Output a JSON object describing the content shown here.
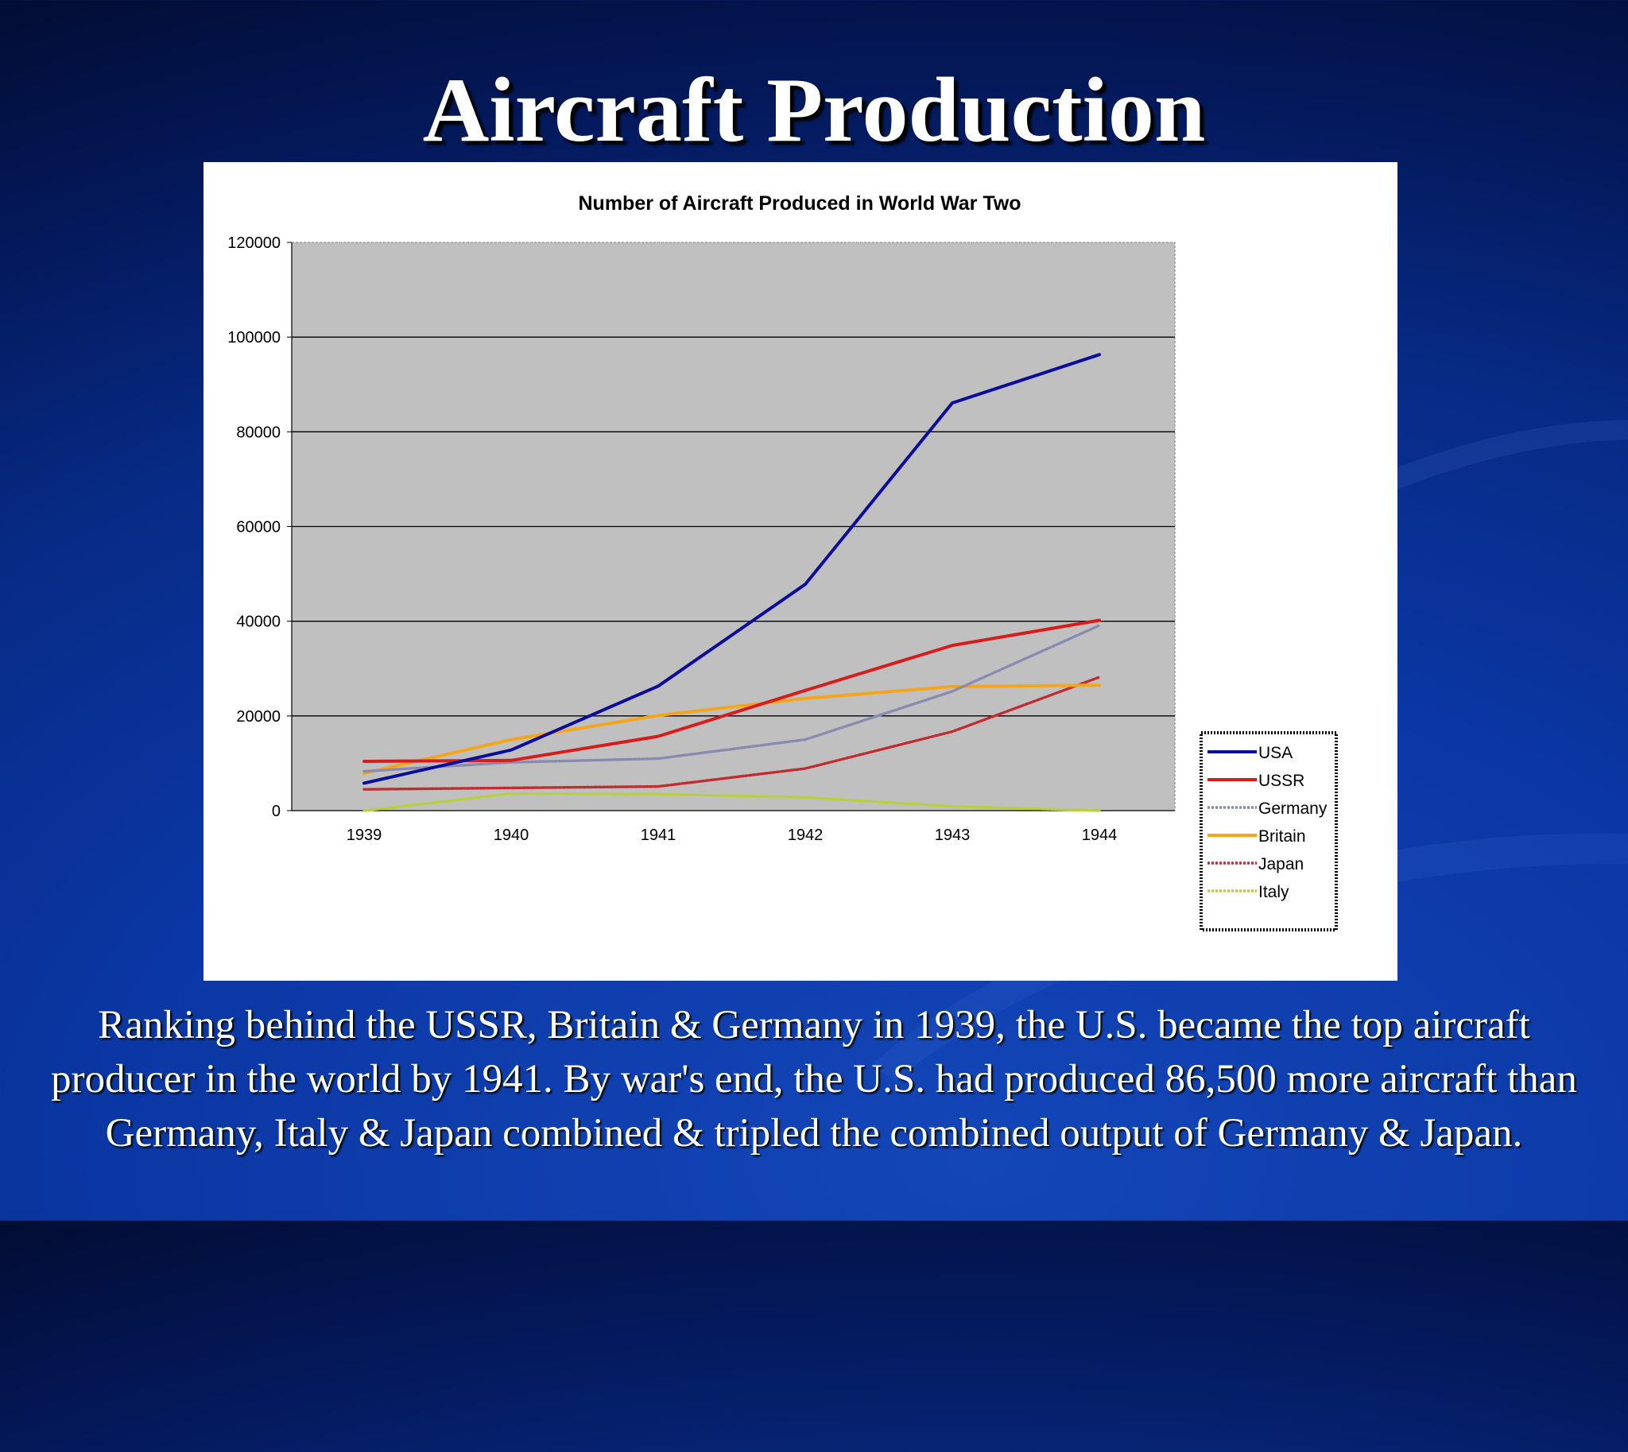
{
  "slide": {
    "title": "Aircraft Production",
    "caption": "Ranking behind the USSR, Britain & Germany in 1939, the U.S. became the top aircraft producer in the world by 1941. By war's end, the U.S. had produced 86,500 more aircraft than Germany, Italy & Japan combined & tripled the combined output of Germany & Japan."
  },
  "chart_data": {
    "type": "line",
    "title": "Number of Aircraft Produced in World War Two",
    "xlabel": "",
    "ylabel": "",
    "x": [
      "1939",
      "1940",
      "1941",
      "1942",
      "1943",
      "1944"
    ],
    "ylim": [
      0,
      120000
    ],
    "yticks": [
      0,
      20000,
      40000,
      60000,
      80000,
      100000,
      120000
    ],
    "grid": true,
    "plot_background": "#c0c0c0",
    "legend_position": "right",
    "series": [
      {
        "name": "USA",
        "color": "#0c0c9c",
        "style": "solid",
        "values": [
          5800,
          12800,
          26300,
          47800,
          86100,
          96300
        ]
      },
      {
        "name": "USSR",
        "color": "#d81c1c",
        "style": "solid",
        "values": [
          10400,
          10600,
          15700,
          25400,
          34900,
          40200
        ]
      },
      {
        "name": "Germany",
        "color": "#8a8ab0",
        "style": "dotted",
        "values": [
          8300,
          10200,
          11000,
          15000,
          25200,
          39100
        ]
      },
      {
        "name": "Britain",
        "color": "#f5a51a",
        "style": "solid",
        "values": [
          7900,
          15000,
          20100,
          23700,
          26200,
          26500
        ]
      },
      {
        "name": "Japan",
        "color": "#c02c30",
        "style": "dotted",
        "values": [
          4500,
          4800,
          5100,
          8900,
          16700,
          28200
        ]
      },
      {
        "name": "Italy",
        "color": "#b8d040",
        "style": "dotted",
        "values": [
          0,
          3600,
          3500,
          2800,
          900,
          0
        ]
      }
    ]
  }
}
